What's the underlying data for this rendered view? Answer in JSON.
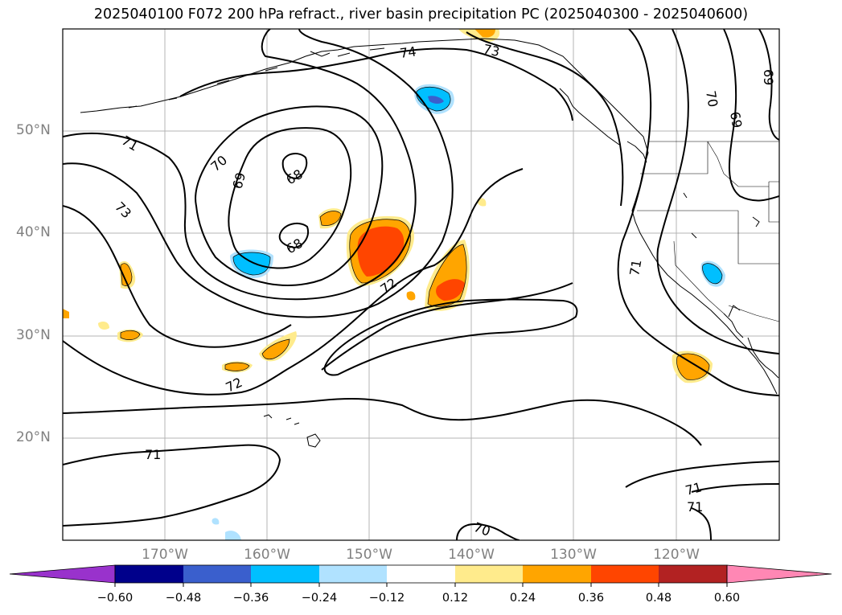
{
  "title": "2025040100 F072 200 hPa refract., river basin precipitation PC (2025040300 - 2025040600)",
  "map": {
    "lat_labels": [
      "50°N",
      "40°N",
      "30°N",
      "20°N"
    ],
    "lon_labels": [
      "170°W",
      "160°W",
      "150°W",
      "140°W",
      "130°W",
      "120°W"
    ],
    "contour_labels": [
      {
        "id": "c74",
        "text": "74"
      },
      {
        "id": "c73a",
        "text": "73"
      },
      {
        "id": "c73b",
        "text": "73"
      },
      {
        "id": "c71a",
        "text": "71"
      },
      {
        "id": "c71b",
        "text": "71"
      },
      {
        "id": "c71c",
        "text": "71"
      },
      {
        "id": "c71d",
        "text": "71"
      },
      {
        "id": "c71e",
        "text": "71"
      },
      {
        "id": "c70a",
        "text": "70"
      },
      {
        "id": "c70b",
        "text": "70"
      },
      {
        "id": "c70c",
        "text": "70"
      },
      {
        "id": "c69a",
        "text": "69"
      },
      {
        "id": "c69b",
        "text": "69"
      },
      {
        "id": "c69c",
        "text": "69"
      },
      {
        "id": "c68a",
        "text": "68"
      },
      {
        "id": "c68b",
        "text": "68"
      },
      {
        "id": "c72a",
        "text": "72"
      },
      {
        "id": "c72b",
        "text": "72"
      }
    ]
  },
  "colorbar": {
    "colors": [
      "#9932cc",
      "#00008b",
      "#3a5fcd",
      "#00bfff",
      "#b0e2ff",
      "#ffffff",
      "#ffeb8c",
      "#ffa500",
      "#ff4500",
      "#b22222",
      "#ff87b4"
    ],
    "ticks": [
      "−0.60",
      "−0.48",
      "−0.36",
      "−0.24",
      "−0.12",
      "0.12",
      "0.24",
      "0.36",
      "0.48",
      "0.60"
    ]
  }
}
